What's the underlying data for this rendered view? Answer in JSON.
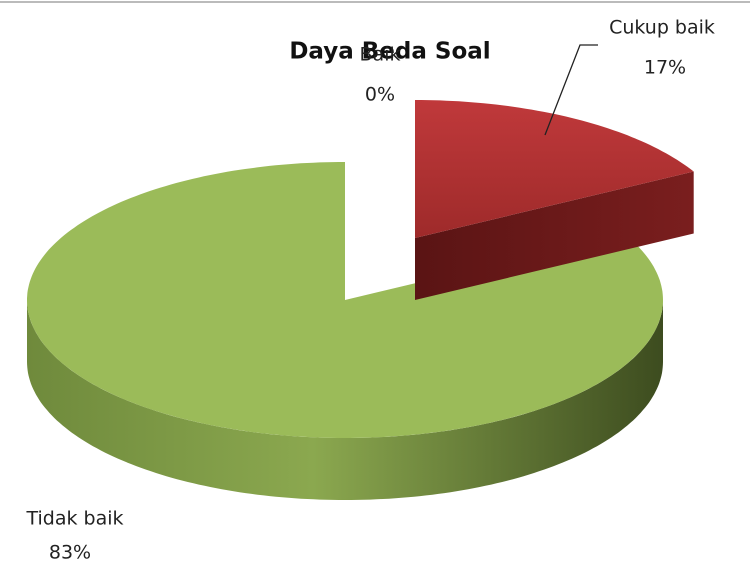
{
  "chart_data": {
    "type": "pie",
    "title": "Daya Beda Soal",
    "categories": [
      "Baik",
      "Cukup baik",
      "Tidak baik"
    ],
    "values": [
      0,
      17,
      83
    ],
    "value_labels": [
      "0%",
      "17%",
      "83%"
    ],
    "colors": [
      "#4f81bd",
      "#c0393b",
      "#9bbb59"
    ]
  }
}
